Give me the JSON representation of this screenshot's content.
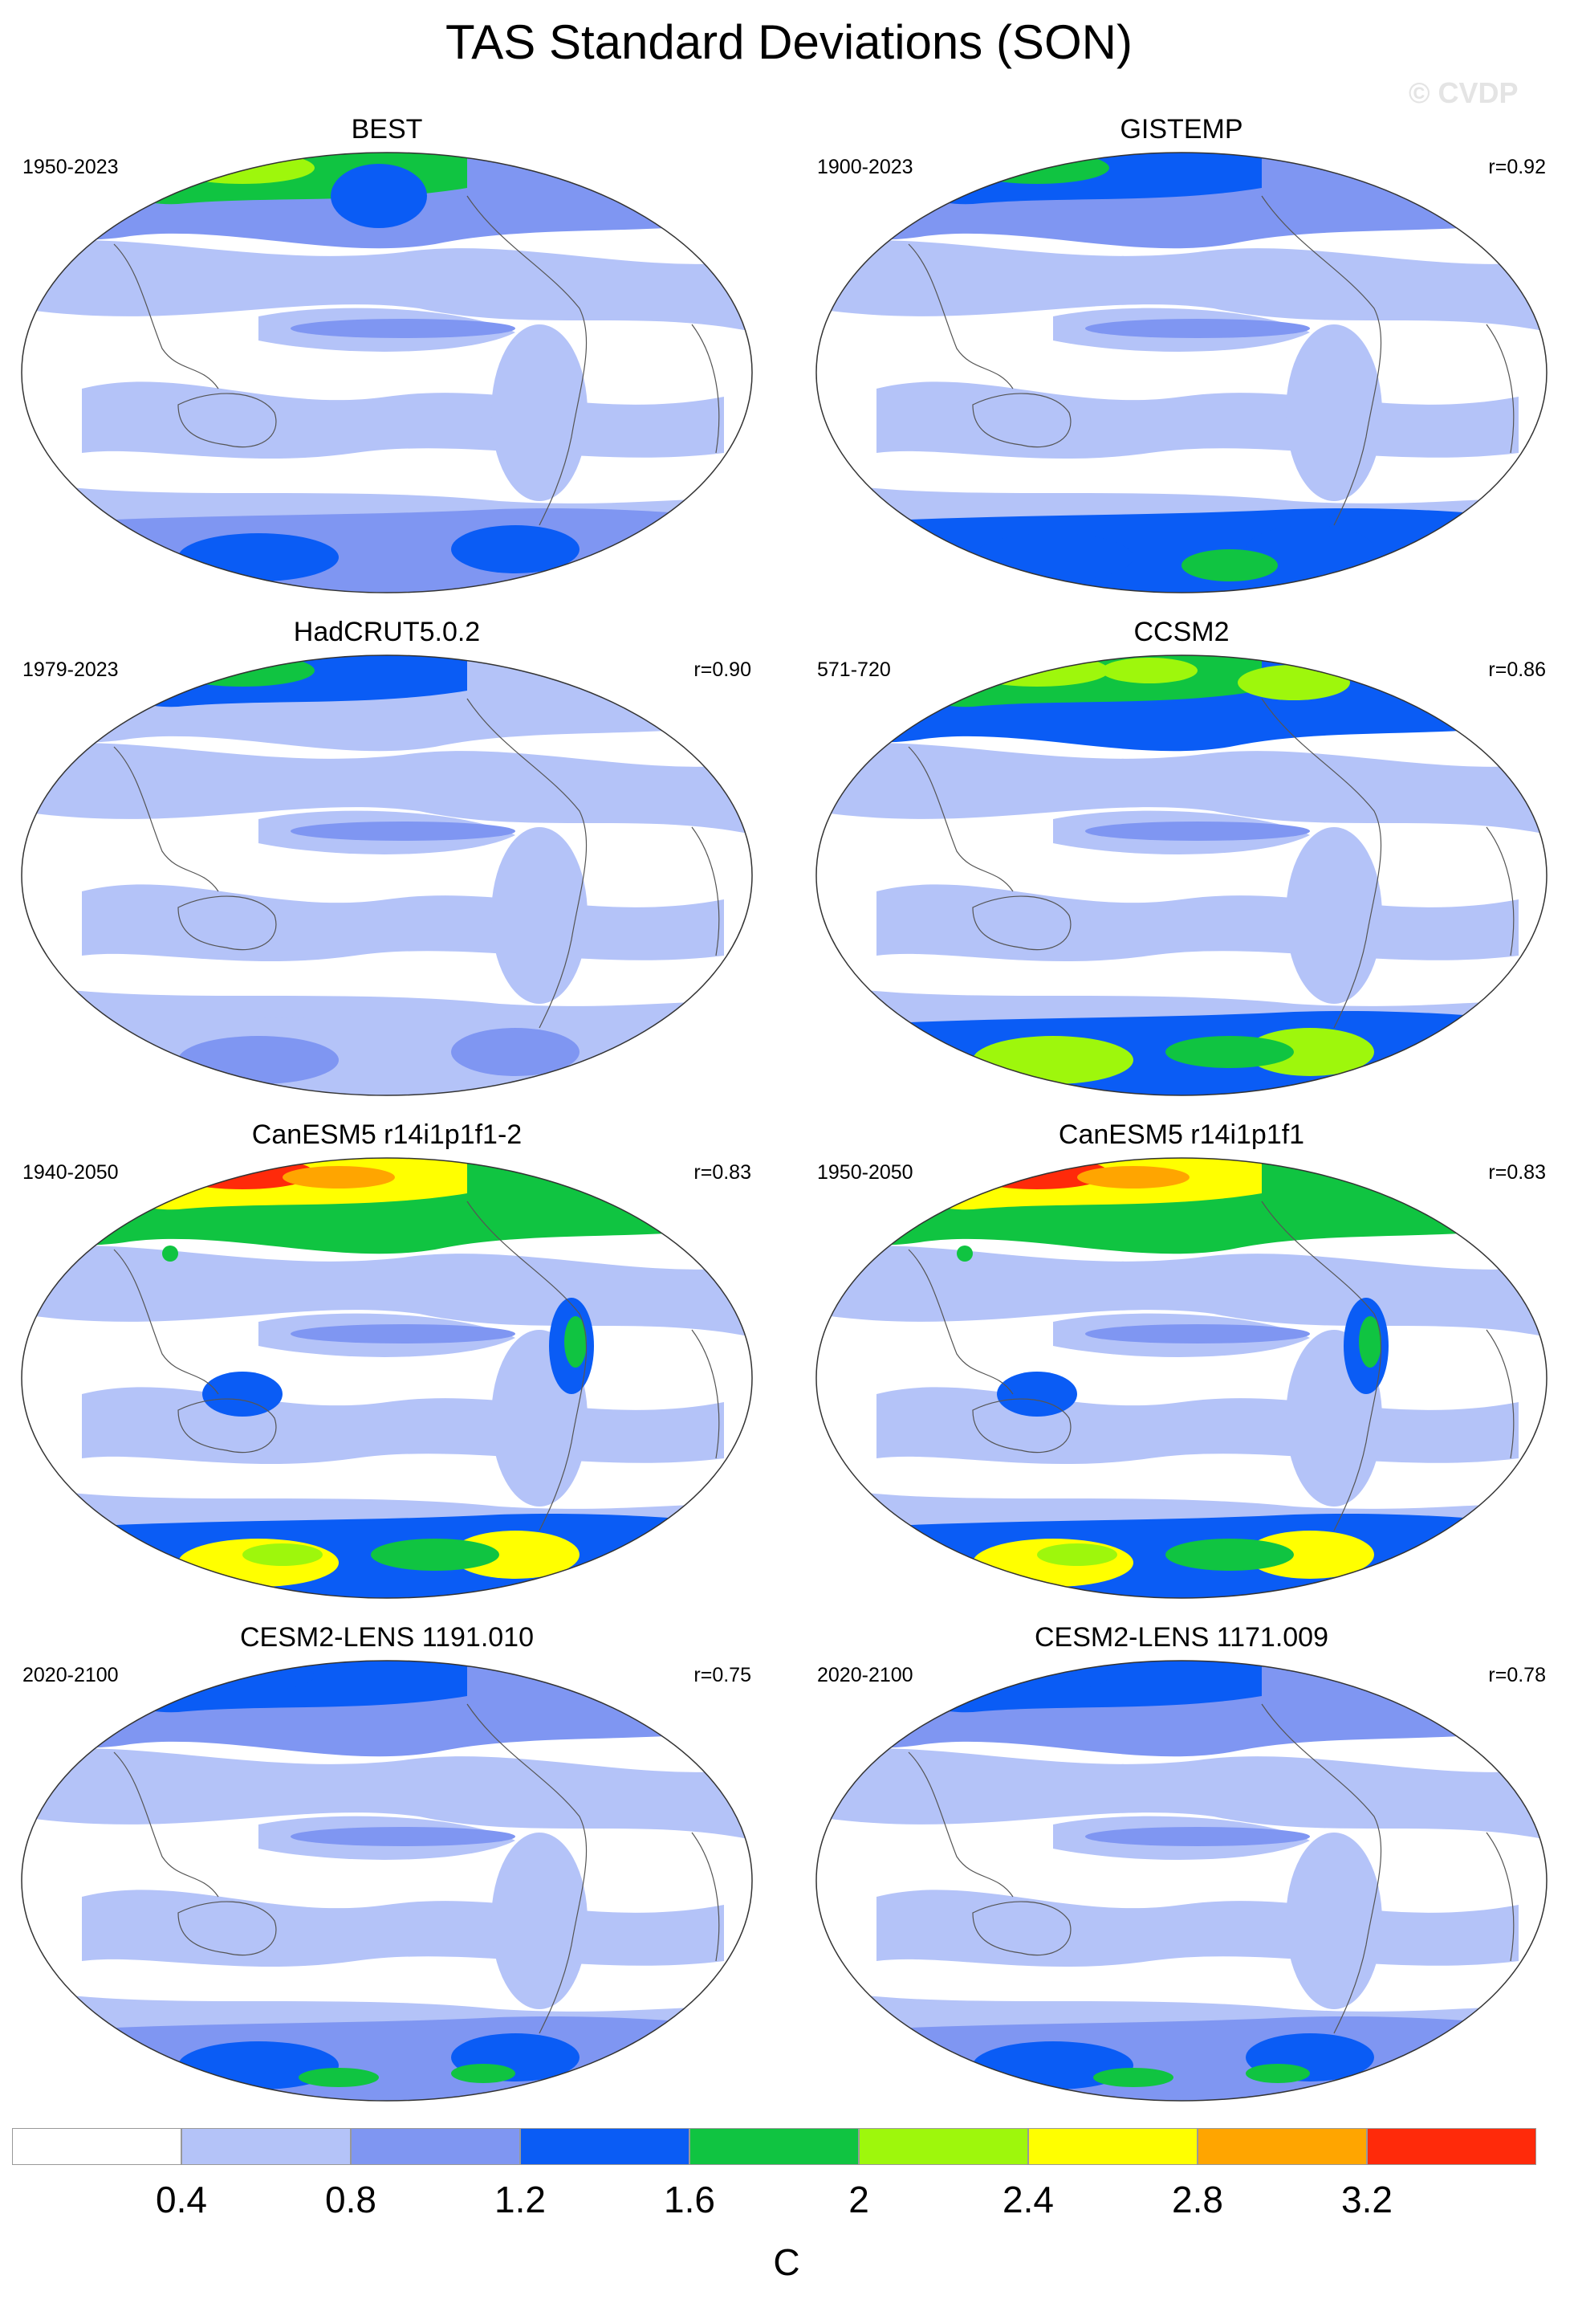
{
  "title": "TAS Standard Deviations (SON)",
  "watermark": "© CVDP",
  "panels": [
    {
      "title": "BEST",
      "years": "1950-2023",
      "r": ""
    },
    {
      "title": "GISTEMP",
      "years": "1900-2023",
      "r": "r=0.92"
    },
    {
      "title": "HadCRUT5.0.2",
      "years": "1979-2023",
      "r": "r=0.90"
    },
    {
      "title": "CCSM2",
      "years": "571-720",
      "r": "r=0.86"
    },
    {
      "title": "CanESM5 r14i1p1f1-2",
      "years": "1940-2050",
      "r": "r=0.83"
    },
    {
      "title": "CanESM5 r14i1p1f1",
      "years": "1950-2050",
      "r": "r=0.83"
    },
    {
      "title": "CESM2-LENS 1191.010",
      "years": "2020-2100",
      "r": "r=0.75"
    },
    {
      "title": "CESM2-LENS 1171.009",
      "years": "2020-2100",
      "r": "r=0.78"
    }
  ],
  "colorbar": {
    "colors": [
      "#ffffff",
      "#b4c3f8",
      "#7f96f2",
      "#0a5cf5",
      "#10c441",
      "#9ef70c",
      "#ffff00",
      "#ffa500",
      "#ff2a0a"
    ],
    "ticks": [
      "0.4",
      "0.8",
      "1.2",
      "1.6",
      "2",
      "2.4",
      "2.8",
      "3.2"
    ],
    "unit": "C"
  }
}
